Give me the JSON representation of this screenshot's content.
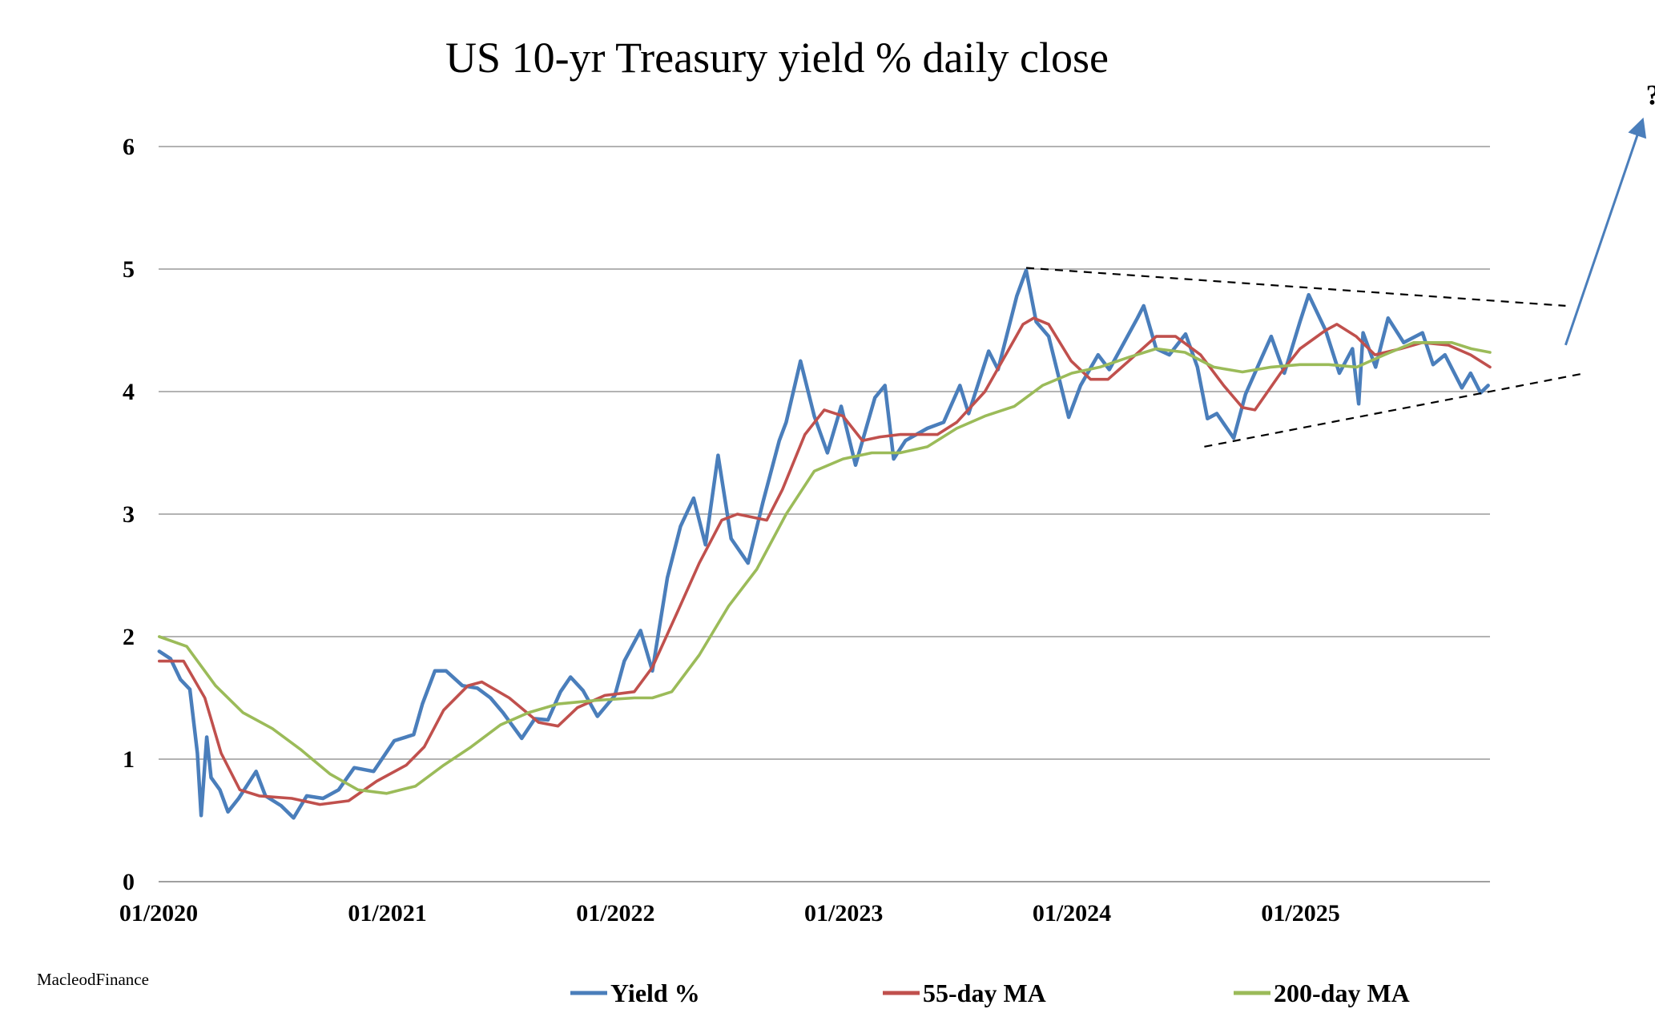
{
  "chart_data": {
    "type": "line",
    "title": "US 10-yr Treasury yield % daily close",
    "xlabel": "",
    "ylabel": "",
    "x_range": [
      "2020-01-01",
      "2025-10-31"
    ],
    "ylim": [
      0,
      6
    ],
    "y_ticks": [
      "0",
      "1",
      "2",
      "3",
      "4",
      "5",
      "6"
    ],
    "x_ticks": [
      {
        "label": "01/2020",
        "date": "2020-01-01"
      },
      {
        "label": "01/2021",
        "date": "2021-01-01"
      },
      {
        "label": "01/2022",
        "date": "2022-01-01"
      },
      {
        "label": "01/2023",
        "date": "2023-01-01"
      },
      {
        "label": "01/2024",
        "date": "2024-01-01"
      },
      {
        "label": "01/2025",
        "date": "2025-01-01"
      }
    ],
    "grid": "horizontal",
    "legend_position": "bottom",
    "series": [
      {
        "name": "Yield %",
        "color": "#4a7ebb",
        "points": [
          [
            "2020-01-02",
            1.88
          ],
          [
            "2020-01-20",
            1.82
          ],
          [
            "2020-02-05",
            1.65
          ],
          [
            "2020-02-20",
            1.57
          ],
          [
            "2020-03-03",
            1.05
          ],
          [
            "2020-03-09",
            0.54
          ],
          [
            "2020-03-18",
            1.18
          ],
          [
            "2020-03-25",
            0.85
          ],
          [
            "2020-04-08",
            0.75
          ],
          [
            "2020-04-21",
            0.57
          ],
          [
            "2020-05-08",
            0.68
          ],
          [
            "2020-06-05",
            0.9
          ],
          [
            "2020-06-20",
            0.7
          ],
          [
            "2020-07-15",
            0.62
          ],
          [
            "2020-08-04",
            0.52
          ],
          [
            "2020-08-25",
            0.7
          ],
          [
            "2020-09-20",
            0.68
          ],
          [
            "2020-10-15",
            0.75
          ],
          [
            "2020-11-09",
            0.93
          ],
          [
            "2020-12-10",
            0.9
          ],
          [
            "2021-01-12",
            1.15
          ],
          [
            "2021-02-12",
            1.2
          ],
          [
            "2021-02-26",
            1.45
          ],
          [
            "2021-03-18",
            1.72
          ],
          [
            "2021-04-05",
            1.72
          ],
          [
            "2021-05-01",
            1.6
          ],
          [
            "2021-05-25",
            1.58
          ],
          [
            "2021-06-15",
            1.5
          ],
          [
            "2021-07-05",
            1.38
          ],
          [
            "2021-08-04",
            1.17
          ],
          [
            "2021-08-25",
            1.33
          ],
          [
            "2021-09-15",
            1.32
          ],
          [
            "2021-10-05",
            1.55
          ],
          [
            "2021-10-21",
            1.67
          ],
          [
            "2021-11-10",
            1.56
          ],
          [
            "2021-12-03",
            1.35
          ],
          [
            "2021-12-31",
            1.52
          ],
          [
            "2022-01-15",
            1.8
          ],
          [
            "2022-02-10",
            2.05
          ],
          [
            "2022-03-01",
            1.72
          ],
          [
            "2022-03-25",
            2.48
          ],
          [
            "2022-04-15",
            2.9
          ],
          [
            "2022-05-06",
            3.13
          ],
          [
            "2022-05-25",
            2.75
          ],
          [
            "2022-06-14",
            3.48
          ],
          [
            "2022-07-05",
            2.8
          ],
          [
            "2022-08-01",
            2.6
          ],
          [
            "2022-08-25",
            3.1
          ],
          [
            "2022-09-20",
            3.6
          ],
          [
            "2022-10-01",
            3.75
          ],
          [
            "2022-10-24",
            4.25
          ],
          [
            "2022-11-15",
            3.8
          ],
          [
            "2022-12-06",
            3.5
          ],
          [
            "2022-12-28",
            3.88
          ],
          [
            "2023-01-20",
            3.4
          ],
          [
            "2023-02-20",
            3.95
          ],
          [
            "2023-03-08",
            4.05
          ],
          [
            "2023-03-22",
            3.45
          ],
          [
            "2023-04-10",
            3.6
          ],
          [
            "2023-05-15",
            3.7
          ],
          [
            "2023-06-10",
            3.75
          ],
          [
            "2023-07-06",
            4.05
          ],
          [
            "2023-07-20",
            3.82
          ],
          [
            "2023-08-21",
            4.33
          ],
          [
            "2023-09-05",
            4.18
          ],
          [
            "2023-10-05",
            4.78
          ],
          [
            "2023-10-20",
            4.99
          ],
          [
            "2023-11-05",
            4.57
          ],
          [
            "2023-11-25",
            4.45
          ],
          [
            "2023-12-27",
            3.79
          ],
          [
            "2024-01-15",
            4.05
          ],
          [
            "2024-02-12",
            4.3
          ],
          [
            "2024-03-01",
            4.18
          ],
          [
            "2024-04-15",
            4.6
          ],
          [
            "2024-04-25",
            4.7
          ],
          [
            "2024-05-15",
            4.35
          ],
          [
            "2024-06-05",
            4.3
          ],
          [
            "2024-07-01",
            4.47
          ],
          [
            "2024-07-20",
            4.2
          ],
          [
            "2024-08-05",
            3.78
          ],
          [
            "2024-08-20",
            3.82
          ],
          [
            "2024-09-16",
            3.62
          ],
          [
            "2024-10-05",
            3.98
          ],
          [
            "2024-10-31",
            4.28
          ],
          [
            "2024-11-15",
            4.45
          ],
          [
            "2024-12-06",
            4.15
          ],
          [
            "2024-12-31",
            4.57
          ],
          [
            "2025-01-14",
            4.79
          ],
          [
            "2025-02-10",
            4.5
          ],
          [
            "2025-03-04",
            4.15
          ],
          [
            "2025-03-25",
            4.35
          ],
          [
            "2025-04-04",
            3.9
          ],
          [
            "2025-04-11",
            4.48
          ],
          [
            "2025-05-01",
            4.2
          ],
          [
            "2025-05-21",
            4.6
          ],
          [
            "2025-06-15",
            4.4
          ],
          [
            "2025-07-15",
            4.48
          ],
          [
            "2025-08-01",
            4.22
          ],
          [
            "2025-08-20",
            4.3
          ],
          [
            "2025-09-16",
            4.03
          ],
          [
            "2025-09-30",
            4.15
          ],
          [
            "2025-10-16",
            3.99
          ],
          [
            "2025-10-28",
            4.05
          ]
        ]
      },
      {
        "name": "55-day MA",
        "color": "#c0504d",
        "points": [
          [
            "2020-01-02",
            1.8
          ],
          [
            "2020-02-10",
            1.8
          ],
          [
            "2020-03-15",
            1.5
          ],
          [
            "2020-04-10",
            1.05
          ],
          [
            "2020-05-10",
            0.75
          ],
          [
            "2020-06-10",
            0.7
          ],
          [
            "2020-08-01",
            0.68
          ],
          [
            "2020-09-15",
            0.63
          ],
          [
            "2020-10-31",
            0.66
          ],
          [
            "2020-12-15",
            0.82
          ],
          [
            "2021-01-31",
            0.95
          ],
          [
            "2021-03-01",
            1.1
          ],
          [
            "2021-04-01",
            1.4
          ],
          [
            "2021-05-10",
            1.6
          ],
          [
            "2021-06-01",
            1.63
          ],
          [
            "2021-07-15",
            1.5
          ],
          [
            "2021-08-31",
            1.3
          ],
          [
            "2021-10-01",
            1.27
          ],
          [
            "2021-11-01",
            1.42
          ],
          [
            "2021-12-15",
            1.52
          ],
          [
            "2022-01-31",
            1.55
          ],
          [
            "2022-03-01",
            1.75
          ],
          [
            "2022-04-10",
            2.2
          ],
          [
            "2022-05-15",
            2.6
          ],
          [
            "2022-06-20",
            2.95
          ],
          [
            "2022-07-15",
            3.0
          ],
          [
            "2022-08-31",
            2.95
          ],
          [
            "2022-09-25",
            3.2
          ],
          [
            "2022-10-31",
            3.65
          ],
          [
            "2022-12-01",
            3.85
          ],
          [
            "2022-12-31",
            3.8
          ],
          [
            "2023-01-31",
            3.6
          ],
          [
            "2023-02-28",
            3.63
          ],
          [
            "2023-04-01",
            3.65
          ],
          [
            "2023-05-31",
            3.65
          ],
          [
            "2023-07-01",
            3.75
          ],
          [
            "2023-08-15",
            4.0
          ],
          [
            "2023-09-15",
            4.28
          ],
          [
            "2023-10-15",
            4.55
          ],
          [
            "2023-11-01",
            4.6
          ],
          [
            "2023-11-25",
            4.55
          ],
          [
            "2023-12-31",
            4.25
          ],
          [
            "2024-01-31",
            4.1
          ],
          [
            "2024-02-28",
            4.1
          ],
          [
            "2024-04-01",
            4.25
          ],
          [
            "2024-05-15",
            4.45
          ],
          [
            "2024-06-15",
            4.45
          ],
          [
            "2024-07-25",
            4.3
          ],
          [
            "2024-08-31",
            4.05
          ],
          [
            "2024-09-30",
            3.87
          ],
          [
            "2024-10-20",
            3.85
          ],
          [
            "2024-11-30",
            4.15
          ],
          [
            "2024-12-31",
            4.35
          ],
          [
            "2025-02-10",
            4.5
          ],
          [
            "2025-02-28",
            4.55
          ],
          [
            "2025-03-31",
            4.45
          ],
          [
            "2025-04-30",
            4.3
          ],
          [
            "2025-06-10",
            4.35
          ],
          [
            "2025-07-15",
            4.4
          ],
          [
            "2025-08-25",
            4.38
          ],
          [
            "2025-09-30",
            4.3
          ],
          [
            "2025-10-31",
            4.2
          ]
        ]
      },
      {
        "name": "200-day MA",
        "color": "#9bbb59",
        "points": [
          [
            "2020-01-02",
            2.0
          ],
          [
            "2020-02-15",
            1.92
          ],
          [
            "2020-04-01",
            1.6
          ],
          [
            "2020-05-15",
            1.38
          ],
          [
            "2020-07-01",
            1.25
          ],
          [
            "2020-08-15",
            1.08
          ],
          [
            "2020-10-01",
            0.88
          ],
          [
            "2020-11-15",
            0.75
          ],
          [
            "2020-12-31",
            0.72
          ],
          [
            "2021-02-15",
            0.78
          ],
          [
            "2021-04-01",
            0.95
          ],
          [
            "2021-05-15",
            1.1
          ],
          [
            "2021-07-01",
            1.28
          ],
          [
            "2021-08-15",
            1.38
          ],
          [
            "2021-10-01",
            1.45
          ],
          [
            "2021-12-01",
            1.48
          ],
          [
            "2022-01-31",
            1.5
          ],
          [
            "2022-03-01",
            1.5
          ],
          [
            "2022-04-01",
            1.55
          ],
          [
            "2022-05-15",
            1.85
          ],
          [
            "2022-07-01",
            2.25
          ],
          [
            "2022-08-15",
            2.55
          ],
          [
            "2022-10-01",
            3.0
          ],
          [
            "2022-11-15",
            3.35
          ],
          [
            "2022-12-31",
            3.45
          ],
          [
            "2023-02-15",
            3.5
          ],
          [
            "2023-04-01",
            3.5
          ],
          [
            "2023-05-15",
            3.55
          ],
          [
            "2023-07-01",
            3.7
          ],
          [
            "2023-08-15",
            3.8
          ],
          [
            "2023-10-01",
            3.88
          ],
          [
            "2023-11-15",
            4.05
          ],
          [
            "2024-01-01",
            4.15
          ],
          [
            "2024-02-15",
            4.2
          ],
          [
            "2024-04-01",
            4.28
          ],
          [
            "2024-05-15",
            4.35
          ],
          [
            "2024-06-30",
            4.32
          ],
          [
            "2024-08-15",
            4.2
          ],
          [
            "2024-09-30",
            4.16
          ],
          [
            "2024-11-15",
            4.2
          ],
          [
            "2024-12-31",
            4.22
          ],
          [
            "2025-02-15",
            4.22
          ],
          [
            "2025-04-01",
            4.2
          ],
          [
            "2025-05-15",
            4.3
          ],
          [
            "2025-07-01",
            4.4
          ],
          [
            "2025-08-31",
            4.4
          ],
          [
            "2025-10-01",
            4.35
          ],
          [
            "2025-10-31",
            4.32
          ]
        ]
      }
    ],
    "annotations": [
      {
        "type": "dashed-trendline",
        "from": [
          "2023-10-20",
          5.01
        ],
        "to": [
          "2026-03-01",
          4.7
        ],
        "label": ""
      },
      {
        "type": "dashed-trendline",
        "from": [
          "2024-07-31",
          3.55
        ],
        "to": [
          "2026-04-01",
          4.15
        ],
        "label": ""
      },
      {
        "type": "arrow",
        "from": [
          "2026-03-01",
          4.38
        ],
        "to": [
          "2026-07-01",
          6.2
        ],
        "color": "#4a7ebb",
        "label": "?"
      }
    ]
  },
  "credit": "MacleodFinance"
}
